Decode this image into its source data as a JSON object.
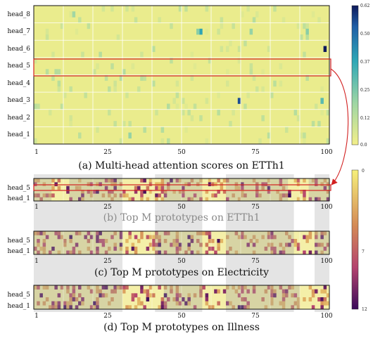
{
  "chart_data": [
    {
      "type": "heatmap",
      "id": "a",
      "caption": "(a) Multi-head attention scores on ETTh1",
      "rows": [
        "head_8",
        "head_7",
        "head_6",
        "head_5",
        "head_4",
        "head_3",
        "head_2",
        "head_1"
      ],
      "x_ticks": [
        "1",
        "25",
        "50",
        "75",
        "100"
      ],
      "x_range": [
        1,
        100
      ],
      "colormap": "yellow-green-blue",
      "colorbar": {
        "ticks": [
          "0.0",
          "0.12",
          "0.25",
          "0.37",
          "0.50",
          "0.62"
        ],
        "range": [
          0,
          0.62
        ]
      },
      "highlight_row": "head_5",
      "background": 0.02,
      "peaks": [
        {
          "row": "head_7",
          "x": 57,
          "value": 0.38
        },
        {
          "row": "head_7",
          "x": 56,
          "value": 0.22
        },
        {
          "row": "head_7",
          "x": 74,
          "value": 0.2
        },
        {
          "row": "head_7",
          "x": 93,
          "value": 0.22
        },
        {
          "row": "head_6",
          "x": 99,
          "value": 0.62
        },
        {
          "row": "head_3",
          "x": 70,
          "value": 0.55
        },
        {
          "row": "head_3",
          "x": 98,
          "value": 0.3
        },
        {
          "row": "head_1",
          "x": 33,
          "value": 0.2
        },
        {
          "row": "head_8",
          "x": 14,
          "value": 0.18
        }
      ]
    },
    {
      "type": "heatmap",
      "id": "b",
      "caption": "(b) Top M prototypes on ETTh1",
      "rows": [
        "head_5",
        "head_1"
      ],
      "x_ticks": [
        "1",
        "25",
        "50",
        "75",
        "100"
      ],
      "x_range": [
        1,
        100
      ],
      "colormap": "yellow-brown-purple",
      "colorbar": {
        "ticks": [
          "0",
          "7",
          "12"
        ],
        "range": [
          0,
          12
        ]
      },
      "highlight_row": "head_5",
      "shaded_ranges": [
        [
          1,
          6
        ],
        [
          13,
          30
        ],
        [
          45,
          57
        ],
        [
          66,
          86
        ],
        [
          94,
          100
        ]
      ]
    },
    {
      "type": "heatmap",
      "id": "c",
      "caption": "(c) Top M prototypes on Electricity",
      "rows": [
        "head_5",
        "head_1"
      ],
      "x_ticks": [
        "1",
        "25",
        "50",
        "75",
        "100"
      ],
      "x_range": [
        1,
        100
      ],
      "colormap": "yellow-brown-purple",
      "shaded_ranges": [
        [
          1,
          30
        ],
        [
          42,
          57
        ],
        [
          66,
          88
        ],
        [
          96,
          100
        ]
      ]
    },
    {
      "type": "heatmap",
      "id": "d",
      "caption": "(d) Top M prototypes on Illness",
      "rows": [
        "head_5",
        "head_1"
      ],
      "x_ticks": [
        "1",
        "25",
        "50",
        "75",
        "100"
      ],
      "x_range": [
        1,
        100
      ],
      "colormap": "yellow-brown-purple",
      "shaded_ranges": [
        [
          1,
          30
        ],
        [
          45,
          57
        ],
        [
          66,
          90
        ]
      ]
    }
  ]
}
